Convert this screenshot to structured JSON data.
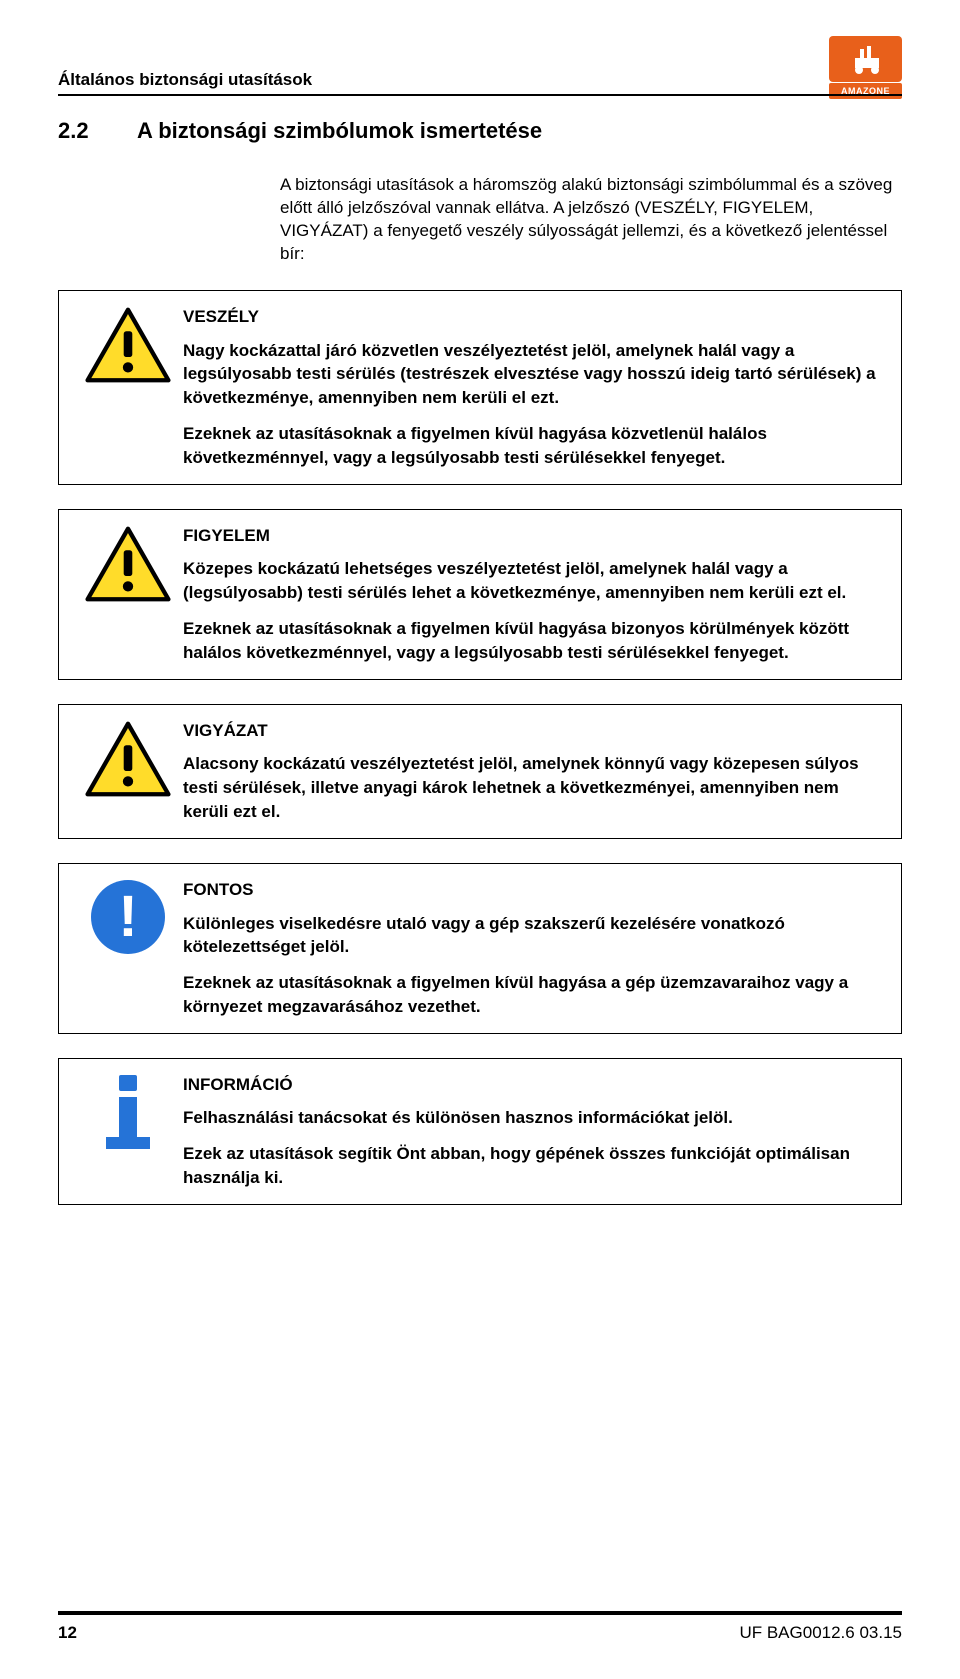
{
  "header": {
    "pageHeader": "Általános biztonsági utasítások"
  },
  "logo": {
    "brand": "AMAZONE",
    "bg_color": "#e8601b"
  },
  "section": {
    "number": "2.2",
    "title": "A biztonsági szimbólumok ismertetése"
  },
  "intro": {
    "p1": "A biztonsági utasítások a háromszög alakú biztonsági szimbólummal és a szöveg előtt álló jelzőszóval vannak ellátva. A jelzőszó (VESZÉLY, FIGYELEM, VIGYÁZAT) a fenyegető veszély súlyosságát jellemzi, és a következő jelentéssel bír:"
  },
  "boxes": [
    {
      "icon": "triangle",
      "title": "VESZÉLY",
      "paragraphs": [
        "Nagy kockázattal járó közvetlen veszélyeztetést jelöl, amelynek halál vagy a legsúlyosabb testi sérülés (testrészek elvesztése vagy hosszú ideig tartó sérülések) a következménye, amennyiben nem kerüli el ezt.",
        "Ezeknek az utasításoknak a figyelmen kívül hagyása közvetlenül halálos következménnyel, vagy a legsúlyosabb testi sérülésekkel fenyeget."
      ]
    },
    {
      "icon": "triangle",
      "title": "FIGYELEM",
      "paragraphs": [
        "Közepes kockázatú lehetséges veszélyeztetést jelöl, amelynek halál vagy a (legsúlyosabb) testi sérülés lehet a következménye, amennyiben nem kerüli ezt el.",
        "Ezeknek az utasításoknak a figyelmen kívül hagyása bizonyos körülmények között halálos következménnyel, vagy a legsúlyosabb testi sérülésekkel fenyeget."
      ]
    },
    {
      "icon": "triangle",
      "title": "VIGYÁZAT",
      "paragraphs": [
        "Alacsony kockázatú veszélyeztetést jelöl, amelynek könnyű vagy közepesen súlyos testi sérülések, illetve anyagi károk lehetnek a következményei, amennyiben nem kerüli ezt el."
      ]
    },
    {
      "icon": "circle",
      "title": "FONTOS",
      "paragraphs": [
        "Különleges viselkedésre utaló vagy a gép szakszerű kezelésére vonatkozó kötelezettséget jelöl.",
        "Ezeknek az utasításoknak a figyelmen kívül hagyása a gép üzemzavaraihoz vagy a környezet megzavarásához vezethet."
      ]
    },
    {
      "icon": "info",
      "title": "INFORMÁCIÓ",
      "paragraphs": [
        "Felhasználási tanácsokat és különösen hasznos információkat jelöl.",
        "Ezek az utasítások segítik Önt abban, hogy gépének összes funkcióját optimálisan használja ki."
      ]
    }
  ],
  "footer": {
    "pageNumber": "12",
    "docRef": "UF  BAG0012.6  03.15"
  },
  "colors": {
    "triangle_fill": "#ffdc2a",
    "triangle_stroke": "#000000",
    "info_blue": "#2573d7"
  }
}
